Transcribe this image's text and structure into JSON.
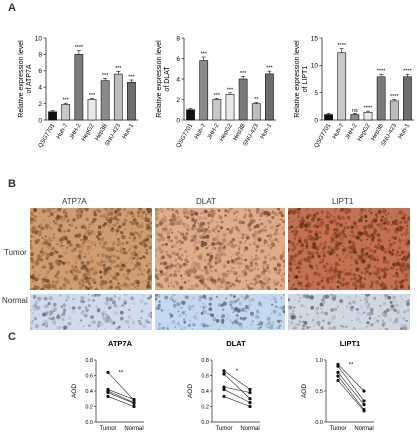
{
  "panels": {
    "A": {
      "letter": "A"
    },
    "B": {
      "letter": "B"
    },
    "C": {
      "letter": "C"
    }
  },
  "chart_data": [
    {
      "type": "bar",
      "panel": "A",
      "ylabel": "Relative expression level of ATP7A",
      "ylim": [
        0,
        10
      ],
      "yticks": [
        0,
        2,
        4,
        6,
        8,
        10
      ],
      "categories": [
        "QSG7701",
        "Huh-7",
        "JHH-2",
        "HepG2",
        "Hep3B",
        "SNU-423",
        "Huh-1"
      ],
      "values": [
        1.0,
        1.9,
        8.0,
        2.5,
        4.8,
        5.6,
        4.6
      ],
      "colors": [
        "#111111",
        "#c8c8c8",
        "#7a7a7a",
        "#e8e8e8",
        "#8a8a8a",
        "#bcbcbc",
        "#6e6e6e"
      ],
      "significance": [
        "",
        "***",
        "****",
        "***",
        "***",
        "***",
        "***"
      ]
    },
    {
      "type": "bar",
      "panel": "A",
      "ylabel": "Relative expression level of DLAT",
      "ylim": [
        0,
        8
      ],
      "yticks": [
        0,
        2,
        4,
        6,
        8
      ],
      "categories": [
        "QSG7701",
        "Huh-7",
        "JHH-2",
        "HepG2",
        "Hep3B",
        "SNU-423",
        "Huh-1"
      ],
      "values": [
        1.0,
        5.8,
        2.0,
        2.5,
        4.0,
        1.6,
        4.5
      ],
      "colors": [
        "#111111",
        "#8a8a8a",
        "#c8c8c8",
        "#e8e8e8",
        "#7a7a7a",
        "#bcbcbc",
        "#6e6e6e"
      ],
      "significance": [
        "",
        "***",
        "***",
        "***",
        "***",
        "**",
        "***"
      ]
    },
    {
      "type": "bar",
      "panel": "A",
      "ylabel": "Relative expression level of LIPT1",
      "ylim": [
        0,
        15
      ],
      "yticks": [
        0,
        5,
        10,
        15
      ],
      "categories": [
        "QSG7701",
        "Huh-7",
        "JHH-2",
        "HepG2",
        "Hep3B",
        "SNU-423",
        "Huh-1"
      ],
      "values": [
        1.0,
        12.3,
        1.0,
        1.4,
        7.9,
        3.5,
        7.9
      ],
      "colors": [
        "#111111",
        "#c8c8c8",
        "#8a8a8a",
        "#e8e8e8",
        "#7a7a7a",
        "#bcbcbc",
        "#6e6e6e"
      ],
      "significance": [
        "",
        "****",
        "ns",
        "****",
        "****",
        "****",
        "****"
      ]
    },
    {
      "type": "scatter",
      "panel": "C",
      "title": "ATP7A",
      "ylabel": "AOD",
      "categories": [
        "Tumor",
        "Normal"
      ],
      "ylim": [
        0,
        0.8
      ],
      "yticks": [
        0.0,
        0.2,
        0.4,
        0.6,
        0.8
      ],
      "pairs": [
        [
          0.64,
          0.28
        ],
        [
          0.42,
          0.29
        ],
        [
          0.4,
          0.25
        ],
        [
          0.38,
          0.24
        ],
        [
          0.33,
          0.2
        ]
      ],
      "significance": "**"
    },
    {
      "type": "scatter",
      "panel": "C",
      "title": "DLAT",
      "ylabel": "AOD",
      "categories": [
        "Tumor",
        "Normal"
      ],
      "ylim": [
        0.0,
        0.8
      ],
      "yticks": [
        0.0,
        0.2,
        0.4,
        0.6,
        0.8
      ],
      "pairs": [
        [
          0.66,
          0.42
        ],
        [
          0.62,
          0.3
        ],
        [
          0.45,
          0.38
        ],
        [
          0.42,
          0.25
        ],
        [
          0.33,
          0.2
        ]
      ],
      "significance": "*"
    },
    {
      "type": "scatter",
      "panel": "C",
      "title": "LIPT1",
      "ylabel": "AOD",
      "categories": [
        "Tumor",
        "Normal"
      ],
      "ylim": [
        0.0,
        1.0
      ],
      "yticks": [
        0.0,
        0.5,
        1.0
      ],
      "pairs": [
        [
          0.93,
          0.5
        ],
        [
          0.9,
          0.34
        ],
        [
          0.8,
          0.28
        ],
        [
          0.74,
          0.2
        ],
        [
          0.67,
          0.18
        ]
      ],
      "significance": "**"
    }
  ],
  "ihc": {
    "columns": [
      "ATP7A",
      "DLAT",
      "LIPT1"
    ],
    "rows": [
      "Tumor",
      "Normal"
    ],
    "tumor_colors": [
      "#a8744a",
      "#b88462",
      "#9a4a2a"
    ],
    "normal_colors": [
      "#a8b4c4",
      "#9cb0c8",
      "#a8b0bc"
    ]
  }
}
